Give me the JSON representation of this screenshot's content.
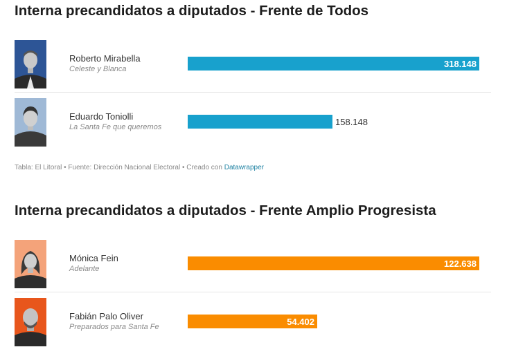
{
  "colors": {
    "frente_todos": "#18a1cd",
    "frente_amplio": "#fa8c00"
  },
  "chart_data": [
    {
      "type": "bar",
      "title": "Interna precandidatos a diputados - Frente de Todos",
      "xlim": [
        0,
        318148
      ],
      "rows": [
        {
          "name": "Roberto Mirabella",
          "list": "Celeste y Blanca",
          "value": 318148,
          "label": "318.148"
        },
        {
          "name": "Eduardo Toniolli",
          "list": "La Santa Fe que queremos",
          "value": 158148,
          "label": "158.148"
        }
      ],
      "footer": {
        "source_text": "Tabla: El Litoral • Fuente: Dirección Nacional Electoral • Creado con ",
        "credit_link": "Datawrapper"
      }
    },
    {
      "type": "bar",
      "title": "Interna precandidatos a diputados - Frente Amplio Progresista",
      "xlim": [
        0,
        122638
      ],
      "rows": [
        {
          "name": "Mónica Fein",
          "list": "Adelante",
          "value": 122638,
          "label": "122.638"
        },
        {
          "name": "Fabián Palo Oliver",
          "list": "Preparados para Santa Fe",
          "value": 54402,
          "label": "54.402"
        }
      ]
    }
  ]
}
